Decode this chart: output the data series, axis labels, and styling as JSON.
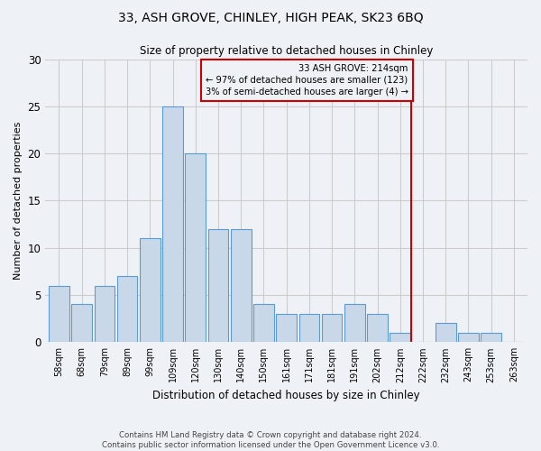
{
  "title": "33, ASH GROVE, CHINLEY, HIGH PEAK, SK23 6BQ",
  "subtitle": "Size of property relative to detached houses in Chinley",
  "xlabel": "Distribution of detached houses by size in Chinley",
  "ylabel": "Number of detached properties",
  "footnote": "Contains HM Land Registry data © Crown copyright and database right 2024.\nContains public sector information licensed under the Open Government Licence v3.0.",
  "bar_labels": [
    "58sqm",
    "68sqm",
    "79sqm",
    "89sqm",
    "99sqm",
    "109sqm",
    "120sqm",
    "130sqm",
    "140sqm",
    "150sqm",
    "161sqm",
    "171sqm",
    "181sqm",
    "191sqm",
    "202sqm",
    "212sqm",
    "222sqm",
    "232sqm",
    "243sqm",
    "253sqm",
    "263sqm"
  ],
  "bar_values": [
    6,
    4,
    6,
    7,
    11,
    25,
    20,
    12,
    12,
    4,
    3,
    3,
    3,
    4,
    3,
    1,
    0,
    2,
    1,
    1,
    0
  ],
  "bar_color": "#c8d8e8",
  "bar_edgecolor": "#5b9bd5",
  "annotation_text": "33 ASH GROVE: 214sqm\n← 97% of detached houses are smaller (123)\n3% of semi-detached houses are larger (4) →",
  "annotation_box_edgecolor": "#cc0000",
  "vline_x": 15.5,
  "vline_color": "#cc0000",
  "ylim": [
    0,
    30
  ],
  "yticks": [
    0,
    5,
    10,
    15,
    20,
    25,
    30
  ],
  "grid_color": "#cccccc",
  "background_color": "#eef2f7",
  "figsize": [
    6.0,
    5.0
  ],
  "dpi": 100
}
